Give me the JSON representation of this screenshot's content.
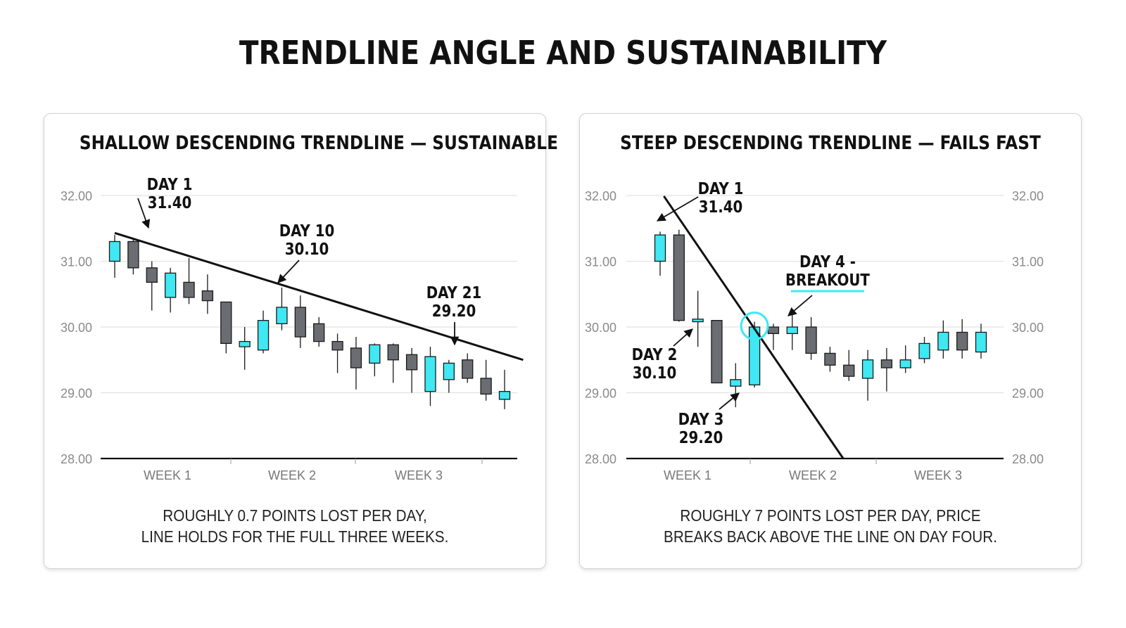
{
  "title": "TRENDLINE ANGLE AND SUSTAINABILITY",
  "colors": {
    "bull": "#3fe8f2",
    "bear": "#6b6d73",
    "outline": "#1a1a1a",
    "grid": "#e2e2e2",
    "accent": "#3fe8f2"
  },
  "chart_data": [
    {
      "type": "candlestick",
      "title": "SHALLOW DESCENDING TRENDLINE — SUSTAINABLE",
      "ylim": [
        28.0,
        32.0
      ],
      "yticks": [
        "32.00",
        "31.00",
        "30.00",
        "29.00",
        "28.00"
      ],
      "xticks": [
        "WEEK 1",
        "WEEK 2",
        "WEEK 3"
      ],
      "candles": [
        {
          "o": 31.0,
          "h": 31.4,
          "l": 30.75,
          "c": 31.3
        },
        {
          "o": 31.3,
          "h": 31.35,
          "l": 30.8,
          "c": 30.9
        },
        {
          "o": 30.9,
          "h": 31.0,
          "l": 30.25,
          "c": 30.68
        },
        {
          "o": 30.45,
          "h": 30.9,
          "l": 30.22,
          "c": 30.82
        },
        {
          "o": 30.68,
          "h": 31.05,
          "l": 30.35,
          "c": 30.45
        },
        {
          "o": 30.55,
          "h": 30.8,
          "l": 30.2,
          "c": 30.4
        },
        {
          "o": 30.38,
          "h": 30.38,
          "l": 29.6,
          "c": 29.75
        },
        {
          "o": 29.7,
          "h": 30.0,
          "l": 29.35,
          "c": 29.78
        },
        {
          "o": 29.65,
          "h": 30.25,
          "l": 29.6,
          "c": 30.1
        },
        {
          "o": 30.05,
          "h": 30.6,
          "l": 29.95,
          "c": 30.3
        },
        {
          "o": 30.3,
          "h": 30.48,
          "l": 29.68,
          "c": 29.85
        },
        {
          "o": 30.05,
          "h": 30.15,
          "l": 29.7,
          "c": 29.78
        },
        {
          "o": 29.78,
          "h": 29.9,
          "l": 29.3,
          "c": 29.65
        },
        {
          "o": 29.68,
          "h": 29.85,
          "l": 29.05,
          "c": 29.38
        },
        {
          "o": 29.45,
          "h": 29.75,
          "l": 29.25,
          "c": 29.73
        },
        {
          "o": 29.73,
          "h": 29.75,
          "l": 29.15,
          "c": 29.5
        },
        {
          "o": 29.58,
          "h": 29.68,
          "l": 29.0,
          "c": 29.35
        },
        {
          "o": 29.02,
          "h": 29.7,
          "l": 28.8,
          "c": 29.55
        },
        {
          "o": 29.2,
          "h": 29.5,
          "l": 29.0,
          "c": 29.45
        },
        {
          "o": 29.5,
          "h": 29.6,
          "l": 29.15,
          "c": 29.22
        },
        {
          "o": 29.22,
          "h": 29.5,
          "l": 28.88,
          "c": 28.98
        },
        {
          "o": 28.9,
          "h": 29.35,
          "l": 28.75,
          "c": 29.02
        }
      ],
      "trendline": [
        [
          0,
          31.43
        ],
        [
          22,
          29.5
        ]
      ],
      "annotations": [
        {
          "lines": [
            "DAY 1",
            "31.40"
          ],
          "candle": 0,
          "value": 31.4
        },
        {
          "lines": [
            "DAY 10",
            "30.10"
          ],
          "candle": 9,
          "value": 30.6
        },
        {
          "lines": [
            "DAY 21",
            "29.20"
          ],
          "candle": 20,
          "value": 29.7
        }
      ],
      "caption": [
        "ROUGHLY 0.7 POINTS LOST PER DAY,",
        "LINE HOLDS FOR THE FULL THREE WEEKS."
      ]
    },
    {
      "type": "candlestick",
      "title": "STEEP DESCENDING TRENDLINE — FAILS FAST",
      "ylim": [
        28.0,
        32.0
      ],
      "yticks": [
        "32.00",
        "31.00",
        "30.00",
        "29.00",
        "28.00"
      ],
      "xticks": [
        "WEEK 1",
        "WEEK 2",
        "WEEK 3"
      ],
      "candles": [
        {
          "o": 31.0,
          "h": 31.45,
          "l": 30.78,
          "c": 31.4
        },
        {
          "o": 31.4,
          "h": 31.48,
          "l": 30.08,
          "c": 30.1
        },
        {
          "o": 30.08,
          "h": 30.55,
          "l": 29.7,
          "c": 30.12
        },
        {
          "o": 30.1,
          "h": 30.1,
          "l": 29.15,
          "c": 29.15
        },
        {
          "o": 29.1,
          "h": 29.45,
          "l": 28.78,
          "c": 29.2
        },
        {
          "o": 29.12,
          "h": 30.08,
          "l": 29.08,
          "c": 30.0
        },
        {
          "o": 30.0,
          "h": 30.05,
          "l": 29.65,
          "c": 29.9
        },
        {
          "o": 29.9,
          "h": 30.22,
          "l": 29.65,
          "c": 30.0
        },
        {
          "o": 30.0,
          "h": 30.15,
          "l": 29.5,
          "c": 29.6
        },
        {
          "o": 29.6,
          "h": 29.7,
          "l": 29.32,
          "c": 29.42
        },
        {
          "o": 29.42,
          "h": 29.65,
          "l": 29.18,
          "c": 29.25
        },
        {
          "o": 29.22,
          "h": 29.65,
          "l": 28.88,
          "c": 29.5
        },
        {
          "o": 29.5,
          "h": 29.68,
          "l": 29.02,
          "c": 29.38
        },
        {
          "o": 29.38,
          "h": 29.72,
          "l": 29.3,
          "c": 29.5
        },
        {
          "o": 29.52,
          "h": 29.85,
          "l": 29.45,
          "c": 29.75
        },
        {
          "o": 29.65,
          "h": 30.1,
          "l": 29.52,
          "c": 29.92
        },
        {
          "o": 29.92,
          "h": 30.12,
          "l": 29.52,
          "c": 29.65
        },
        {
          "o": 29.62,
          "h": 30.05,
          "l": 29.52,
          "c": 29.92
        }
      ],
      "trendline": [
        [
          0.2,
          31.99
        ],
        [
          9.7,
          28.0
        ]
      ],
      "breakout_candle": 5,
      "annotations": [
        {
          "lines": [
            "DAY 1",
            "31.40"
          ],
          "candle": 1,
          "value": 31.48
        },
        {
          "lines": [
            "DAY 2",
            "30.10"
          ],
          "candle": 2,
          "value": 29.85
        },
        {
          "lines": [
            "DAY 3",
            "29.20"
          ],
          "candle": 4,
          "value": 29.0
        },
        {
          "lines": [
            "DAY 4 -",
            "BREAKOUT"
          ],
          "candle": 5,
          "value": 30.18
        }
      ],
      "caption": [
        "ROUGHLY 7 POINTS LOST PER DAY, PRICE",
        "BREAKS BACK ABOVE THE LINE ON DAY FOUR."
      ]
    }
  ]
}
